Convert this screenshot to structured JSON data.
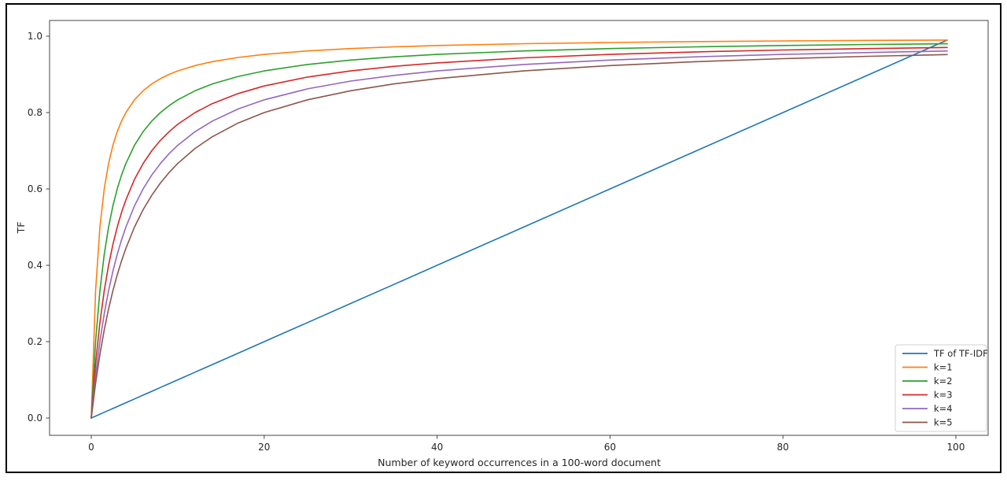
{
  "figure": {
    "background": "#ffffff",
    "border_color": "#000000",
    "spine_color": "#444444",
    "text_color": "#262626",
    "legend_border_color": "#d0d0d0"
  },
  "chart_data": {
    "type": "line",
    "title": "",
    "xlabel": "Number of keyword occurrences in a 100-word document",
    "ylabel": "TF",
    "xlim": [
      -5,
      104
    ],
    "ylim": [
      -0.05,
      1.04
    ],
    "grid": false,
    "legend_position": "lower right",
    "x_ticks": [
      0,
      20,
      40,
      60,
      80,
      100
    ],
    "x_tick_labels": [
      "0",
      "20",
      "40",
      "60",
      "80",
      "100"
    ],
    "y_ticks": [
      0.0,
      0.2,
      0.4,
      0.6,
      0.8,
      1.0
    ],
    "y_tick_labels": [
      "0.0",
      "0.2",
      "0.4",
      "0.6",
      "0.8",
      "1.0"
    ],
    "x": [
      0,
      0.5,
      1,
      1.5,
      2,
      2.5,
      3,
      3.5,
      4,
      5,
      6,
      7,
      8,
      9,
      10,
      12,
      14,
      17,
      20,
      25,
      30,
      35,
      40,
      50,
      60,
      70,
      80,
      90,
      99
    ],
    "series": [
      {
        "name": "TF of TF-IDF",
        "color": "#1f77b4",
        "values": [
          0,
          0.005,
          0.01,
          0.015,
          0.02,
          0.025,
          0.03,
          0.035,
          0.04,
          0.05,
          0.06,
          0.07,
          0.08,
          0.09,
          0.1,
          0.12,
          0.14,
          0.17,
          0.2,
          0.25,
          0.3,
          0.35,
          0.4,
          0.5,
          0.6,
          0.7,
          0.8,
          0.9,
          0.99
        ]
      },
      {
        "name": "k=1",
        "color": "#ff7f0e",
        "values": [
          0,
          0.3333,
          0.5,
          0.6,
          0.6667,
          0.7143,
          0.75,
          0.7778,
          0.8,
          0.8333,
          0.8571,
          0.875,
          0.8889,
          0.9,
          0.9091,
          0.9231,
          0.9333,
          0.9444,
          0.9524,
          0.9615,
          0.9677,
          0.9722,
          0.9756,
          0.9804,
          0.9836,
          0.9859,
          0.9877,
          0.989,
          0.99
        ]
      },
      {
        "name": "k=2",
        "color": "#2ca02c",
        "values": [
          0,
          0.2,
          0.3333,
          0.4286,
          0.5,
          0.5556,
          0.6,
          0.6364,
          0.6667,
          0.7143,
          0.75,
          0.7778,
          0.8,
          0.8182,
          0.8333,
          0.8571,
          0.875,
          0.8947,
          0.9091,
          0.9259,
          0.9375,
          0.9459,
          0.9524,
          0.9615,
          0.9677,
          0.9722,
          0.9756,
          0.9783,
          0.9802
        ]
      },
      {
        "name": "k=3",
        "color": "#d62728",
        "values": [
          0,
          0.1429,
          0.25,
          0.3333,
          0.4,
          0.4545,
          0.5,
          0.5385,
          0.5714,
          0.625,
          0.6667,
          0.7,
          0.7273,
          0.75,
          0.7692,
          0.8,
          0.8235,
          0.85,
          0.8696,
          0.8929,
          0.9091,
          0.9211,
          0.9302,
          0.9434,
          0.9524,
          0.9589,
          0.9639,
          0.9677,
          0.9706
        ]
      },
      {
        "name": "k=4",
        "color": "#9467bd",
        "values": [
          0,
          0.1111,
          0.2,
          0.2727,
          0.3333,
          0.3846,
          0.4286,
          0.4667,
          0.5,
          0.5556,
          0.6,
          0.6364,
          0.6667,
          0.6923,
          0.7143,
          0.75,
          0.7778,
          0.8095,
          0.8333,
          0.8621,
          0.8824,
          0.8974,
          0.9091,
          0.9259,
          0.9375,
          0.9459,
          0.9524,
          0.9574,
          0.9612
        ]
      },
      {
        "name": "k=5",
        "color": "#8c564b",
        "values": [
          0,
          0.0909,
          0.1667,
          0.2308,
          0.2857,
          0.3333,
          0.375,
          0.4118,
          0.4444,
          0.5,
          0.5455,
          0.5833,
          0.6154,
          0.6429,
          0.6667,
          0.7059,
          0.7368,
          0.7727,
          0.8,
          0.8333,
          0.8571,
          0.875,
          0.8889,
          0.9091,
          0.9231,
          0.9333,
          0.9412,
          0.9474,
          0.9519
        ]
      }
    ]
  }
}
